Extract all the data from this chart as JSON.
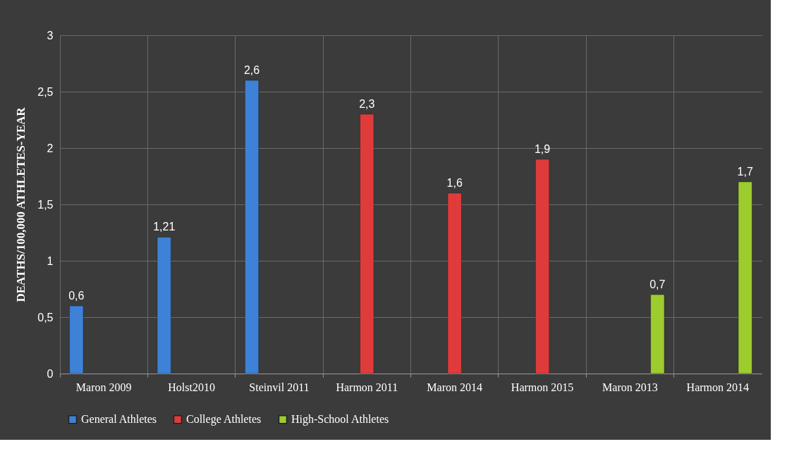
{
  "chart_data": {
    "type": "bar",
    "ylabel": "DEATHS/100,000 ATHLETES-YEAR",
    "categories": [
      "Maron 2009",
      "Holst2010",
      "Steinvil 2011",
      "Harmon 2011",
      "Maron 2014",
      "Harmon 2015",
      "Maron 2013",
      "Harmon 2014"
    ],
    "series": [
      {
        "name": "General Athletes",
        "color": "#3d82d6",
        "values": [
          0.6,
          1.21,
          2.6,
          null,
          null,
          null,
          null,
          null
        ],
        "value_labels": [
          "0,6",
          "1,21",
          "2,6",
          null,
          null,
          null,
          null,
          null
        ]
      },
      {
        "name": "College Athletes",
        "color": "#e03b3b",
        "values": [
          null,
          null,
          null,
          2.3,
          1.6,
          1.9,
          null,
          null
        ],
        "value_labels": [
          null,
          null,
          null,
          "2,3",
          "1,6",
          "1,9",
          null,
          null
        ]
      },
      {
        "name": "High-School Athletes",
        "color": "#9ccc2e",
        "values": [
          null,
          null,
          null,
          null,
          null,
          null,
          0.7,
          1.7
        ],
        "value_labels": [
          null,
          null,
          null,
          null,
          null,
          null,
          "0,7",
          "1,7"
        ]
      }
    ],
    "ylim": [
      0,
      3
    ],
    "yticks": [
      0,
      {
        "value": 0.5,
        "label": "0,5"
      },
      1,
      {
        "value": 1.5,
        "label": "1,5"
      },
      2,
      {
        "value": 2.5,
        "label": "2,5"
      },
      3
    ],
    "grid": true,
    "legend": "bottom"
  }
}
